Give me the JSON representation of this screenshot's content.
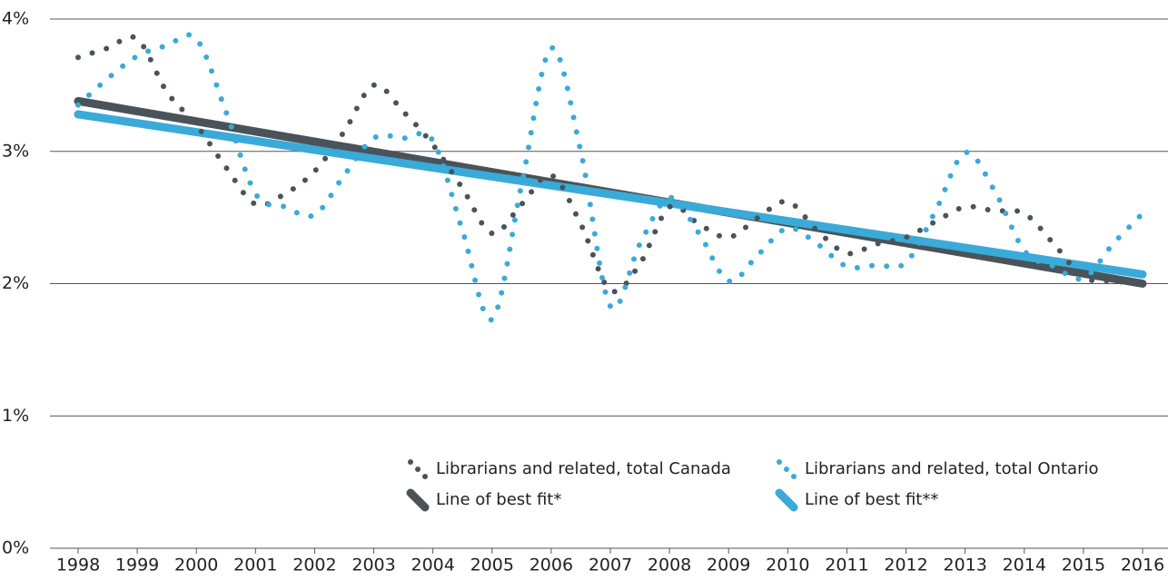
{
  "chart_data": {
    "type": "line",
    "xlim": [
      1998,
      2016
    ],
    "xticks": [
      1998,
      1999,
      2000,
      2001,
      2002,
      2003,
      2004,
      2005,
      2006,
      2007,
      2008,
      2009,
      2010,
      2011,
      2012,
      2013,
      2014,
      2015,
      2016
    ],
    "ylim": [
      0,
      4
    ],
    "yticks": [
      {
        "value": 0,
        "label": "0%"
      },
      {
        "value": 1,
        "label": "1%"
      },
      {
        "value": 2,
        "label": "2%"
      },
      {
        "value": 3,
        "label": "3%"
      },
      {
        "value": 4,
        "label": "4%"
      }
    ],
    "grid": true,
    "legend": "bottom-right",
    "series": [
      {
        "name": "Librarians and related, total Canada",
        "color": "#4a5359",
        "style": "dotted",
        "x": [
          1998,
          1998.5,
          1999,
          1999.5,
          2000,
          2000.5,
          2001,
          2001.5,
          2002,
          2002.5,
          2003,
          2003.5,
          2004,
          2004.5,
          2005,
          2005.5,
          2006,
          2006.5,
          2007,
          2007.5,
          2008,
          2008.5,
          2009,
          2009.5,
          2010,
          2010.5,
          2011,
          2011.5,
          2012,
          2012.5,
          2013,
          2013.5,
          2014,
          2014.5,
          2015,
          2015.5,
          2016
        ],
        "values": [
          3.71,
          3.78,
          3.85,
          3.45,
          3.2,
          2.88,
          2.6,
          2.68,
          2.85,
          3.15,
          3.5,
          3.3,
          3.05,
          2.72,
          2.38,
          2.6,
          2.82,
          2.45,
          1.95,
          2.15,
          2.58,
          2.45,
          2.35,
          2.5,
          2.62,
          2.4,
          2.23,
          2.3,
          2.35,
          2.47,
          2.58,
          2.55,
          2.53,
          2.3,
          2.05,
          2.02,
          2.0
        ]
      },
      {
        "name": "Librarians and related, total Ontario",
        "color": "#3aaad8",
        "style": "dotted",
        "x": [
          1998,
          1998.5,
          1999,
          1999.5,
          2000,
          2000.5,
          2001,
          2001.5,
          2002,
          2002.5,
          2003,
          2003.5,
          2004,
          2004.5,
          2005,
          2005.5,
          2006,
          2006.5,
          2007,
          2007.5,
          2008,
          2008.5,
          2009,
          2009.5,
          2010,
          2010.5,
          2011,
          2011.5,
          2012,
          2012.5,
          2013,
          2013.5,
          2014,
          2014.5,
          2015,
          2015.5,
          2016
        ],
        "values": [
          3.35,
          3.55,
          3.72,
          3.8,
          3.85,
          3.3,
          2.68,
          2.58,
          2.52,
          2.82,
          3.1,
          3.1,
          3.08,
          2.4,
          1.73,
          2.75,
          3.78,
          3.0,
          1.83,
          2.3,
          2.65,
          2.38,
          2.02,
          2.22,
          2.42,
          2.3,
          2.13,
          2.14,
          2.16,
          2.55,
          2.99,
          2.7,
          2.25,
          2.13,
          2.04,
          2.3,
          2.53
        ]
      },
      {
        "name": "Line of best fit*",
        "color": "#4a5359",
        "style": "solid",
        "x": [
          1998,
          2016
        ],
        "values": [
          3.38,
          2.0
        ]
      },
      {
        "name": "Line of best fit**",
        "color": "#3aaad8",
        "style": "solid",
        "x": [
          1998,
          2016
        ],
        "values": [
          3.28,
          2.07
        ]
      }
    ]
  }
}
